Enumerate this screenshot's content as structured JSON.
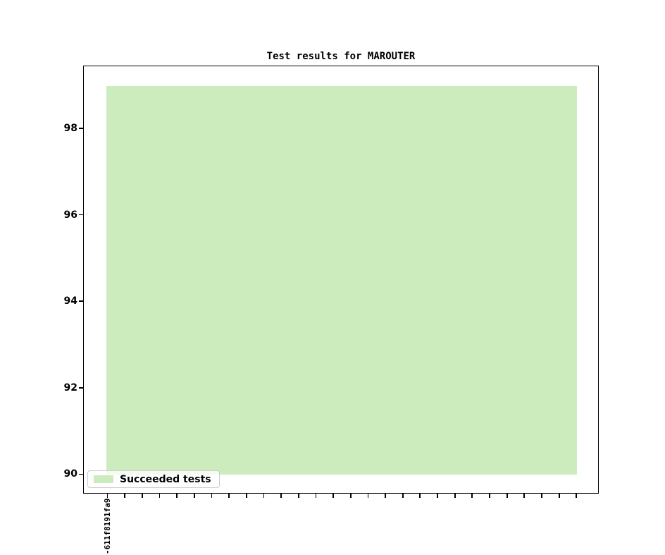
{
  "chart_data": {
    "type": "area",
    "title": "Test results for MAROUTER",
    "categories": [
      "-611f8191fa9",
      "",
      "",
      "",
      "",
      "",
      "",
      "",
      "",
      "",
      "",
      "",
      "",
      "",
      "",
      "",
      "",
      "",
      "",
      "",
      "",
      "",
      "",
      "",
      "",
      "",
      "",
      ""
    ],
    "series": [
      {
        "name": "Succeeded tests",
        "color": "#cdecbd",
        "baseline": 90,
        "values": [
          99,
          99,
          99,
          99,
          99,
          99,
          99,
          99,
          99,
          99,
          99,
          99,
          99,
          99,
          99,
          99,
          99,
          99,
          99,
          99,
          99,
          99,
          99,
          99,
          99,
          99,
          99,
          99
        ]
      }
    ],
    "xlabel": "",
    "ylabel": "",
    "y_ticks": [
      90,
      92,
      94,
      96,
      98
    ],
    "ylim": [
      89.55,
      99.45
    ],
    "grid": false,
    "legend_position": "lower left",
    "legend_entries": [
      "Succeeded tests"
    ],
    "colors": {
      "area_fill": "#cdecbd",
      "axis": "#000000",
      "legend_border": "#cccccc",
      "background": "#ffffff"
    }
  }
}
